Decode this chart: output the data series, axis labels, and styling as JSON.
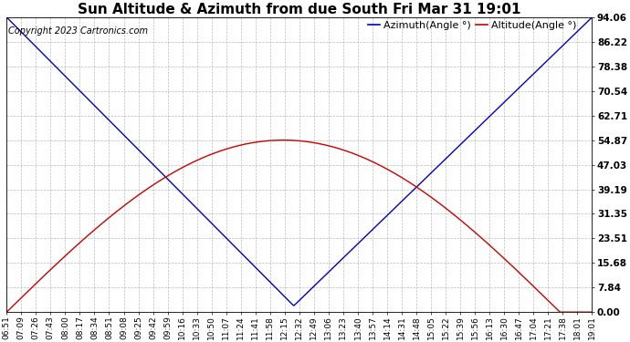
{
  "title": "Sun Altitude & Azimuth from due South Fri Mar 31 19:01",
  "copyright": "Copyright 2023 Cartronics.com",
  "legend_azimuth": "Azimuth(Angle °)",
  "legend_altitude": "Altitude(Angle °)",
  "azimuth_color": "#0000cc",
  "altitude_color": "#cc0000",
  "background_color": "#ffffff",
  "grid_color": "#aaaaaa",
  "yticks": [
    0.0,
    7.84,
    15.68,
    23.51,
    31.35,
    39.19,
    47.03,
    54.87,
    62.71,
    70.54,
    78.38,
    86.22,
    94.06
  ],
  "ymin": 0.0,
  "ymax": 94.06,
  "time_labels": [
    "06:51",
    "07:09",
    "07:26",
    "07:43",
    "08:00",
    "08:17",
    "08:34",
    "08:51",
    "09:08",
    "09:25",
    "09:42",
    "09:59",
    "10:16",
    "10:33",
    "10:50",
    "11:07",
    "11:24",
    "11:41",
    "11:58",
    "12:15",
    "12:32",
    "12:49",
    "13:06",
    "13:23",
    "13:40",
    "13:57",
    "14:14",
    "14:31",
    "14:48",
    "15:05",
    "15:22",
    "15:39",
    "15:56",
    "16:13",
    "16:30",
    "16:47",
    "17:04",
    "17:21",
    "17:38",
    "18:01",
    "19:01"
  ],
  "title_fontsize": 11,
  "copyright_fontsize": 7,
  "legend_fontsize": 8,
  "tick_fontsize": 6.5,
  "ytick_fontsize": 7.5,
  "line_width": 1.0
}
